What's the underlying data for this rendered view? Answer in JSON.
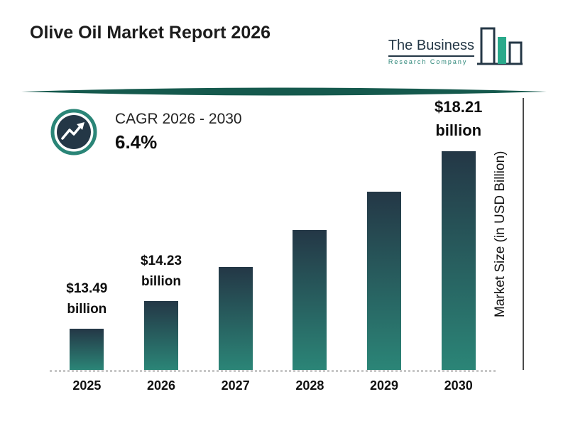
{
  "header": {
    "title": "Olive Oil Market Report 2026",
    "logo": {
      "primary": "The Business",
      "secondary": "Research Company"
    }
  },
  "cagr": {
    "label": "CAGR 2026 - 2030",
    "value": "6.4%"
  },
  "colors": {
    "accent_teal": "#2a8577",
    "dark_navy": "#243746",
    "divider_teal": "#15594d",
    "logo_green": "#2aa98b",
    "dotted_baseline": "#c7c7c7"
  },
  "chart_data": {
    "type": "bar",
    "categories": [
      "2025",
      "2026",
      "2027",
      "2028",
      "2029",
      "2030"
    ],
    "values": [
      13.49,
      14.23,
      15.14,
      16.11,
      17.14,
      18.21
    ],
    "bar_labels": [
      {
        "amount": "$13.49",
        "unit": "billion"
      },
      {
        "amount": "$14.23",
        "unit": "billion"
      },
      null,
      null,
      null,
      {
        "amount": "$18.21",
        "unit": "billion"
      }
    ],
    "xlabel": "",
    "ylabel": "Market Size (in USD Billion)",
    "legend": "none",
    "grid": "off",
    "baseline_style": "dotted",
    "bar_gradient": [
      "#243746",
      "#2b8577"
    ]
  }
}
